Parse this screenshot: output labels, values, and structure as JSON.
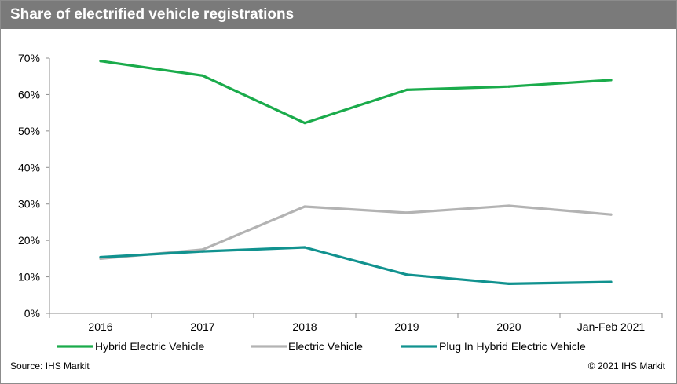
{
  "title": "Share of electrified vehicle registrations",
  "footer": {
    "source": "Source: IHS Markit",
    "copyright": "© 2021 IHS Markit"
  },
  "chart_data": {
    "type": "line",
    "title": "Share of electrified vehicle registrations",
    "xlabel": "",
    "ylabel": "",
    "categories": [
      "2016",
      "2017",
      "2018",
      "2019",
      "2020",
      "Jan-Feb 2021"
    ],
    "ylim": [
      0,
      70
    ],
    "yticks": [
      0,
      10,
      20,
      30,
      40,
      50,
      60,
      70
    ],
    "ytick_labels": [
      "0%",
      "10%",
      "20%",
      "30%",
      "40%",
      "50%",
      "60%",
      "70%"
    ],
    "grid": false,
    "legend_position": "bottom",
    "series": [
      {
        "name": "Hybrid Electric Vehicle",
        "color": "#1aab4b",
        "values": [
          69.2,
          65.2,
          52.2,
          61.3,
          62.2,
          64.0
        ]
      },
      {
        "name": "Electric Vehicle",
        "color": "#b3b3b3",
        "values": [
          15.0,
          17.5,
          29.3,
          27.6,
          29.5,
          27.1
        ]
      },
      {
        "name": "Plug In Hybrid Electric Vehicle",
        "color": "#11928f",
        "values": [
          15.4,
          17.0,
          18.1,
          10.6,
          8.1,
          8.6
        ]
      }
    ]
  }
}
